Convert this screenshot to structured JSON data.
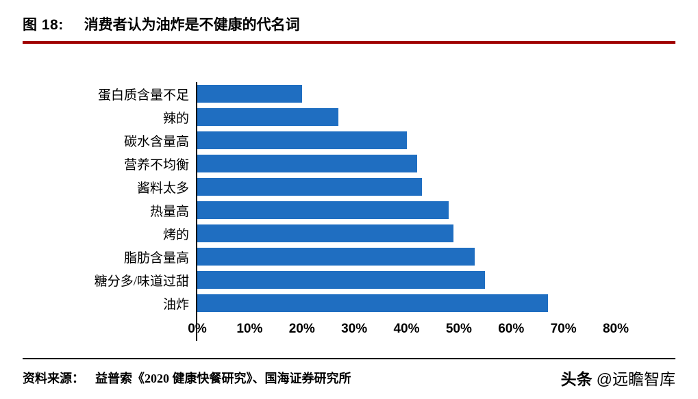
{
  "header": {
    "figure_label": "图 18:",
    "title": "消费者认为油炸是不健康的代名词"
  },
  "chart_data": {
    "type": "bar",
    "orientation": "horizontal",
    "title": "图 18: 消费者认为油炸是不健康的代名词",
    "categories": [
      "蛋白质含量不足",
      "辣的",
      "碳水含量高",
      "营养不均衡",
      "酱料太多",
      "热量高",
      "烤的",
      "脂肪含量高",
      "糖分多/味道过甜",
      "油炸"
    ],
    "values": [
      20,
      27,
      40,
      42,
      43,
      48,
      49,
      53,
      55,
      67
    ],
    "unit": "%",
    "xlabel": "",
    "ylabel": "",
    "xlim": [
      0,
      80
    ],
    "x_ticks": [
      "0%",
      "10%",
      "20%",
      "30%",
      "40%",
      "50%",
      "60%",
      "70%",
      "80%"
    ],
    "grid": false,
    "legend": false,
    "bar_color": "#1F6EC1"
  },
  "footer": {
    "source_label": "资料来源：",
    "source_text": "益普索《2020 健康快餐研究》、国海证券研究所",
    "watermark_brand": "头条",
    "watermark_handle": "@远瞻智库"
  },
  "colors": {
    "accent_red": "#A00000",
    "bar_blue": "#1F6EC1",
    "axis_black": "#000000"
  }
}
